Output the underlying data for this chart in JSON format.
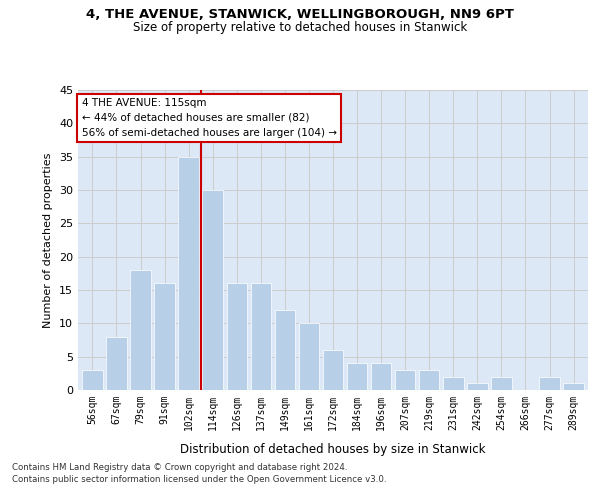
{
  "title": "4, THE AVENUE, STANWICK, WELLINGBOROUGH, NN9 6PT",
  "subtitle": "Size of property relative to detached houses in Stanwick",
  "xlabel": "Distribution of detached houses by size in Stanwick",
  "ylabel": "Number of detached properties",
  "categories": [
    "56sqm",
    "67sqm",
    "79sqm",
    "91sqm",
    "102sqm",
    "114sqm",
    "126sqm",
    "137sqm",
    "149sqm",
    "161sqm",
    "172sqm",
    "184sqm",
    "196sqm",
    "207sqm",
    "219sqm",
    "231sqm",
    "242sqm",
    "254sqm",
    "266sqm",
    "277sqm",
    "289sqm"
  ],
  "values": [
    3,
    8,
    18,
    16,
    35,
    30,
    16,
    16,
    12,
    10,
    6,
    4,
    4,
    3,
    3,
    2,
    1,
    2,
    0,
    2,
    1
  ],
  "bar_color": "#b8cfe8",
  "bar_edge_color": "white",
  "vline_x": 4.5,
  "vline_color": "#cc0000",
  "annotation_title": "4 THE AVENUE: 115sqm",
  "annotation_line1": "← 44% of detached houses are smaller (82)",
  "annotation_line2": "56% of semi-detached houses are larger (104) →",
  "annotation_box_color": "#cc0000",
  "annotation_bg": "#ffffff",
  "ylim": [
    0,
    45
  ],
  "yticks": [
    0,
    5,
    10,
    15,
    20,
    25,
    30,
    35,
    40,
    45
  ],
  "grid_color": "#cccccc",
  "bg_color": "#dce8f5",
  "footer_line1": "Contains HM Land Registry data © Crown copyright and database right 2024.",
  "footer_line2": "Contains public sector information licensed under the Open Government Licence v3.0."
}
